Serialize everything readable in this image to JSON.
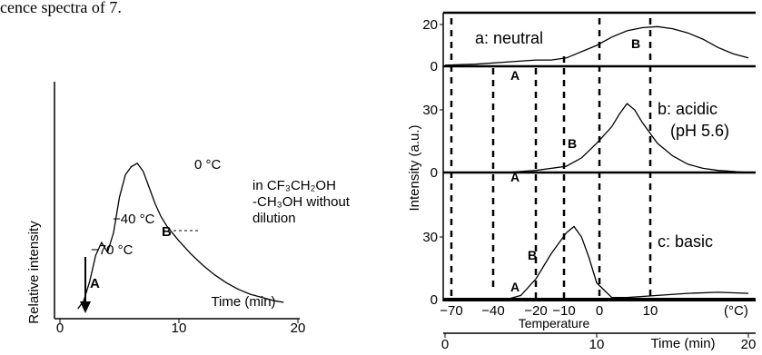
{
  "header_fragment": "cence spectra of 7.",
  "colors": {
    "ink": "#000000",
    "background": "#ffffff"
  },
  "chart_data": [
    {
      "type": "line",
      "title": "",
      "xlabel": "Time (min)",
      "ylabel": "Relative intensity",
      "xlim": [
        0,
        20
      ],
      "x_ticks": [
        0,
        10,
        20
      ],
      "y_ticks": [],
      "grid": false,
      "legend": "none",
      "series": [
        {
          "name": "",
          "x": [
            1.5,
            2.0,
            2.5,
            3.0,
            3.5,
            4.0,
            4.5,
            5.0,
            5.5,
            6.0,
            6.5,
            7.0,
            7.5,
            8.0,
            8.5,
            9.0,
            10.0,
            11.0,
            12.0,
            13.0,
            14.0,
            15.0,
            16.0,
            17.0,
            18.0,
            18.8
          ],
          "y": [
            0.05,
            0.1,
            0.22,
            0.38,
            0.46,
            0.4,
            0.52,
            0.74,
            0.88,
            0.93,
            0.95,
            0.9,
            0.8,
            0.7,
            0.62,
            0.56,
            0.47,
            0.39,
            0.32,
            0.26,
            0.21,
            0.17,
            0.14,
            0.12,
            0.1,
            0.09
          ]
        }
      ],
      "annotations": {
        "temp_markers": [
          "−70 °C",
          "−40 °C",
          "0 °C"
        ],
        "solvent_note": [
          "in CF₃CH₂OH",
          "-CH₃OH without",
          "dilution"
        ],
        "region_labels": [
          "A",
          "B"
        ]
      }
    },
    {
      "type": "line",
      "title": "",
      "xlabel": "Time (min)",
      "ylabel": "Intensity (a.u.)",
      "xlim": [
        0,
        20
      ],
      "x_ticks": [
        0,
        10,
        20
      ],
      "secondary_x_label": "Temperature",
      "secondary_x_ticks": [
        "−70",
        "−40",
        "−20",
        "−10",
        "0",
        "10"
      ],
      "secondary_x_unit": "(°C)",
      "grid": false,
      "legend": "none",
      "panels": [
        {
          "name": "a: neutral",
          "y_ticks": [
            0,
            20
          ],
          "ylim": [
            0,
            25
          ],
          "peak_labels": [
            "A",
            "B"
          ],
          "x": [
            0,
            2,
            4,
            6,
            7,
            8,
            10,
            11,
            12,
            13,
            14,
            15,
            16,
            17,
            18,
            19,
            20
          ],
          "y": [
            0.5,
            1,
            2,
            3,
            3,
            4,
            10,
            14,
            17,
            18.5,
            19,
            18,
            16,
            13,
            9,
            6,
            4
          ]
        },
        {
          "name": "b: acidic",
          "condition": "(pH 5.6)",
          "y_ticks": [
            0,
            30
          ],
          "ylim": [
            0,
            45
          ],
          "peak_labels": [
            "A",
            "B"
          ],
          "x": [
            0,
            4,
            6,
            8,
            9,
            10,
            11,
            11.5,
            12,
            12.5,
            13,
            14,
            15,
            16,
            17,
            18,
            20
          ],
          "y": [
            0,
            0,
            1,
            3,
            7,
            14,
            22,
            28,
            33,
            30,
            24,
            14,
            8,
            4,
            2,
            1,
            0
          ]
        },
        {
          "name": "c: basic",
          "y_ticks": [
            0,
            30
          ],
          "ylim": [
            0,
            45
          ],
          "peak_labels": [
            "A",
            "B"
          ],
          "x": [
            0,
            4,
            5,
            6,
            7,
            8,
            8.5,
            9,
            9.5,
            10,
            11,
            12,
            14,
            16,
            18,
            20
          ],
          "y": [
            0,
            0,
            2,
            10,
            22,
            32,
            35,
            30,
            20,
            8,
            1,
            1,
            2,
            3,
            3.5,
            3
          ]
        }
      ]
    }
  ]
}
